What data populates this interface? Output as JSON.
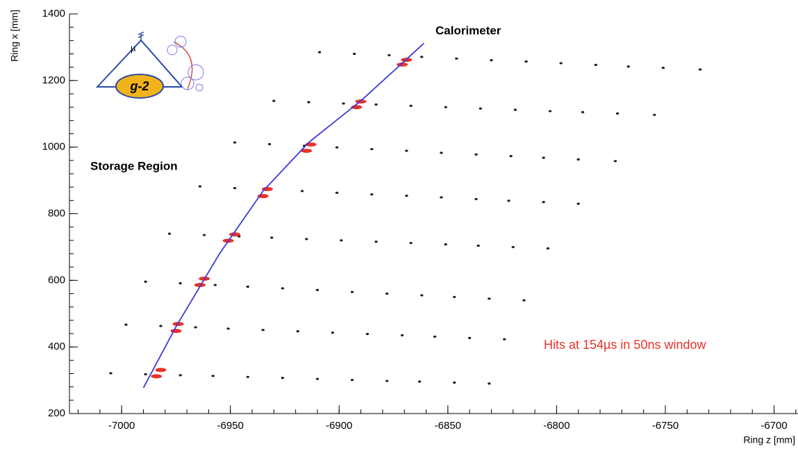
{
  "chart_data": {
    "type": "scatter",
    "xlabel": "Ring z [mm]",
    "ylabel": "Ring x [mm]",
    "annotations": [
      "Calorimeter",
      "Storage Region",
      "Hits at 154µs in 50ns window",
      "µ",
      "g-2"
    ],
    "xlim": [
      -7024,
      -6689
    ],
    "ylim": [
      200,
      1400
    ],
    "xticks": [
      -7000,
      -6950,
      -6900,
      -6850,
      -6800,
      -6750,
      -6700
    ],
    "yticks": [
      200,
      400,
      600,
      800,
      1000,
      1200,
      1400
    ],
    "series": [
      {
        "color": "#222222",
        "marker": "dot",
        "x": [
          -7005,
          -6989,
          -6973,
          -6958,
          -6942,
          -6926,
          -6910,
          -6894,
          -6878,
          -6863,
          -6847,
          -6831
        ],
        "values": [
          321,
          318,
          315,
          313,
          310,
          307,
          304,
          301,
          298,
          296,
          293,
          290
        ]
      },
      {
        "color": "#222222",
        "marker": "dot",
        "x": [
          -6998,
          -6982,
          -6966,
          -6951,
          -6935,
          -6919,
          -6903,
          -6887,
          -6871,
          -6856,
          -6840,
          -6824
        ],
        "values": [
          467,
          463,
          459,
          455,
          451,
          447,
          443,
          439,
          435,
          431,
          427,
          423
        ]
      },
      {
        "color": "#222222",
        "marker": "dot",
        "x": [
          -6989,
          -6973,
          -6957,
          -6942,
          -6926,
          -6910,
          -6894,
          -6878,
          -6862,
          -6847,
          -6831,
          -6815
        ],
        "values": [
          596,
          591,
          586,
          581,
          576,
          571,
          565,
          560,
          555,
          550,
          545,
          540
        ]
      },
      {
        "color": "#222222",
        "marker": "dot",
        "x": [
          -6978,
          -6962,
          -6946,
          -6931,
          -6915,
          -6899,
          -6883,
          -6867,
          -6851,
          -6836,
          -6820,
          -6804
        ],
        "values": [
          740,
          736,
          732,
          728,
          724,
          720,
          716,
          712,
          708,
          704,
          700,
          696
        ]
      },
      {
        "color": "#222222",
        "marker": "dot",
        "x": [
          -6964,
          -6948,
          -6932,
          -6917,
          -6901,
          -6885,
          -6869,
          -6853,
          -6837,
          -6822,
          -6806,
          -6790
        ],
        "values": [
          882,
          877,
          873,
          868,
          863,
          858,
          854,
          849,
          844,
          839,
          835,
          830
        ]
      },
      {
        "color": "#222222",
        "marker": "dot",
        "x": [
          -6948,
          -6932,
          -6916,
          -6901,
          -6885,
          -6869,
          -6853,
          -6837,
          -6821,
          -6806,
          -6790,
          -6773
        ],
        "values": [
          1014,
          1009,
          1004,
          999,
          994,
          989,
          983,
          978,
          973,
          968,
          963,
          958
        ]
      },
      {
        "color": "#222222",
        "marker": "dot",
        "x": [
          -6930,
          -6914,
          -6898,
          -6883,
          -6867,
          -6851,
          -6835,
          -6819,
          -6803,
          -6788,
          -6772,
          -6755
        ],
        "values": [
          1139,
          1135,
          1131,
          1128,
          1124,
          1120,
          1116,
          1112,
          1108,
          1105,
          1101,
          1097
        ]
      },
      {
        "color": "#222222",
        "marker": "dot",
        "x": [
          -6909,
          -6893,
          -6877,
          -6862,
          -6846,
          -6830,
          -6814,
          -6798,
          -6782,
          -6767,
          -6751,
          -6734
        ],
        "values": [
          1285,
          1280,
          1276,
          1271,
          1266,
          1261,
          1257,
          1252,
          1247,
          1242,
          1238,
          1233
        ]
      },
      {
        "color": "#e8332a",
        "marker": "hit",
        "x": [
          -6982,
          -6984,
          -6974,
          -6975,
          -6962,
          -6964,
          -6948,
          -6951,
          -6933,
          -6935,
          -6913,
          -6915,
          -6890,
          -6892,
          -6869,
          -6871
        ],
        "values": [
          331,
          312,
          469,
          448,
          605,
          586,
          738,
          719,
          874,
          853,
          1008,
          989,
          1137,
          1120,
          1262,
          1248
        ]
      },
      {
        "color": "#3a3ad6",
        "marker": "line",
        "x": [
          -6990,
          -6975,
          -6955,
          -6935,
          -6914,
          -6890,
          -6869,
          -6861
        ],
        "values": [
          277,
          461,
          680,
          868,
          1014,
          1139,
          1264,
          1312
        ]
      }
    ]
  }
}
